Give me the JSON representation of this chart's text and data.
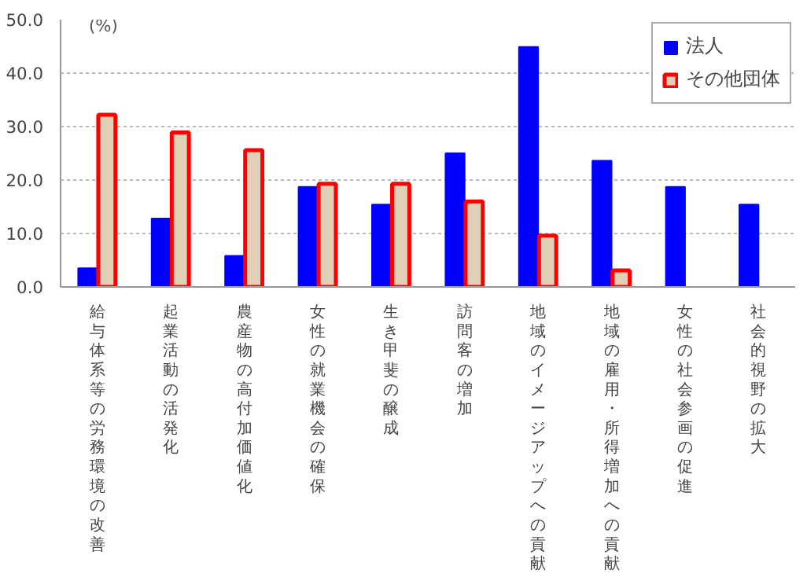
{
  "chart_data": {
    "type": "bar",
    "ylabel": "(%)",
    "categories": [
      "給与体系等の労務環境の改善",
      "起業活動の活発化",
      "農産物の高付加価値化",
      "女性の就業機会の確保",
      "生き甲斐の醸成",
      "訪問客の増加",
      "地域のイメージアップへの貢献",
      "地域の雇用・所得増加への貢献",
      "女性の社会参画の促進",
      "社会的視野の拡大"
    ],
    "series": [
      {
        "name": "法人",
        "color": "#0000ff",
        "values": [
          3.5,
          12.8,
          5.8,
          18.7,
          15.4,
          25.0,
          44.9,
          23.6,
          18.7,
          15.4
        ]
      },
      {
        "name": "その他団体",
        "color": "#e0d0b8",
        "values": [
          32.2,
          28.9,
          25.6,
          19.3,
          19.3,
          16.0,
          9.6,
          3.1,
          null,
          null
        ]
      }
    ],
    "ylim": [
      0,
      50
    ],
    "yticks": [
      {
        "value": 0,
        "label": "0.0"
      },
      {
        "value": 10,
        "label": "10.0"
      },
      {
        "value": 20,
        "label": "20.0"
      },
      {
        "value": 30,
        "label": "30.0"
      },
      {
        "value": 40,
        "label": "40.0"
      },
      {
        "value": 50,
        "label": "50.0"
      }
    ],
    "grid": "y",
    "legend": "top right"
  }
}
